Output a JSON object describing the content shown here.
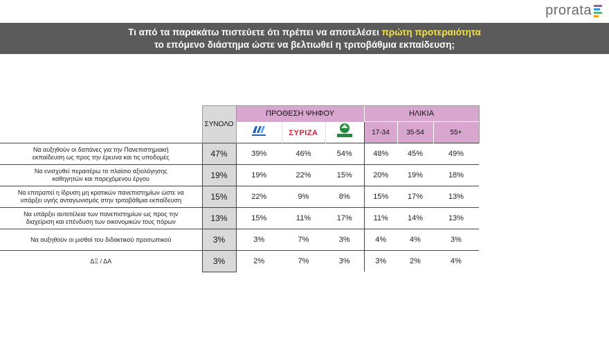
{
  "brand": {
    "name": "prorata",
    "bar_colors": [
      "#9b59b6",
      "#3498db",
      "#2ecc71",
      "#f39c12"
    ]
  },
  "banner": {
    "line1_pre": "Τι από τα παρακάτω πιστεύετε ότι πρέπει να αποτελέσει ",
    "line1_highlight": "πρώτη προτεραιότητα",
    "line2": "το επόμενο διάστημα ώστε να βελτιωθεί η τριτοβάθμια εκπαίδευση;"
  },
  "colors": {
    "banner_bg": "#5a5a5a",
    "highlight": "#f5e44a",
    "group_header": "#d9a6cf",
    "total_col": "#d9d9d9"
  },
  "chart_data": {
    "type": "table",
    "total_header": "ΣΥΝΟΛΟ",
    "groups": [
      {
        "label": "ΠΡΟΘΕΣΗ ΨΗΦΟΥ",
        "columns": [
          "nd-logo",
          "syriza-logo",
          "pasok-logo"
        ]
      },
      {
        "label": "ΗΛΙΚΙΑ",
        "columns": [
          "17-34",
          "35-54",
          "55+"
        ]
      }
    ],
    "party_logos": {
      "nd": {
        "text": "ΝΔ",
        "color": "#1d63b5"
      },
      "syriza": {
        "text": "ΣΥΡΙΖΑ",
        "color": "#cf1f3a"
      },
      "pasok": {
        "text": "ΠΑΣΟΚ",
        "color": "#1f8a3b"
      }
    },
    "rows": [
      {
        "label_lines": [
          "Να αυξηθούν οι δαπάνες για την Πανεπιστημιακή",
          "εκπαίδευση ως προς την έρευνα και τις υποδομές"
        ],
        "total": "47%",
        "values": [
          "39%",
          "46%",
          "54%",
          "48%",
          "45%",
          "49%"
        ]
      },
      {
        "label_lines": [
          "Να ενισχυθεί περαιτέρω το πλαίσιο αξιολόγησης",
          "καθηγητών και παρεχόμενου έργου"
        ],
        "total": "19%",
        "values": [
          "19%",
          "22%",
          "15%",
          "20%",
          "19%",
          "18%"
        ]
      },
      {
        "label_lines": [
          "Να επιτραπεί η ίδρυση μη κρατικών πανεπιστημίων ώστε να",
          "υπάρξει υγιής ανταγωνισμός στην τριτοβάθμια εκπαίδευση"
        ],
        "total": "15%",
        "values": [
          "22%",
          "9%",
          "8%",
          "15%",
          "17%",
          "13%"
        ]
      },
      {
        "label_lines": [
          "Να υπάρξει αυτοτέλεια των πανεπιστημίων ως προς την",
          "διαχείριση και επένδυση των οικονομικών τους πόρων"
        ],
        "total": "13%",
        "values": [
          "15%",
          "11%",
          "17%",
          "11%",
          "14%",
          "13%"
        ]
      },
      {
        "label_lines": [
          "Να αυξηθούν οι μισθοί του διδακτικού προσωπικού"
        ],
        "total": "3%",
        "values": [
          "3%",
          "7%",
          "3%",
          "4%",
          "4%",
          "3%"
        ]
      },
      {
        "label_lines": [
          "ΔΞ / ΔΑ"
        ],
        "total": "3%",
        "values": [
          "2%",
          "7%",
          "3%",
          "3%",
          "2%",
          "4%"
        ]
      }
    ]
  }
}
